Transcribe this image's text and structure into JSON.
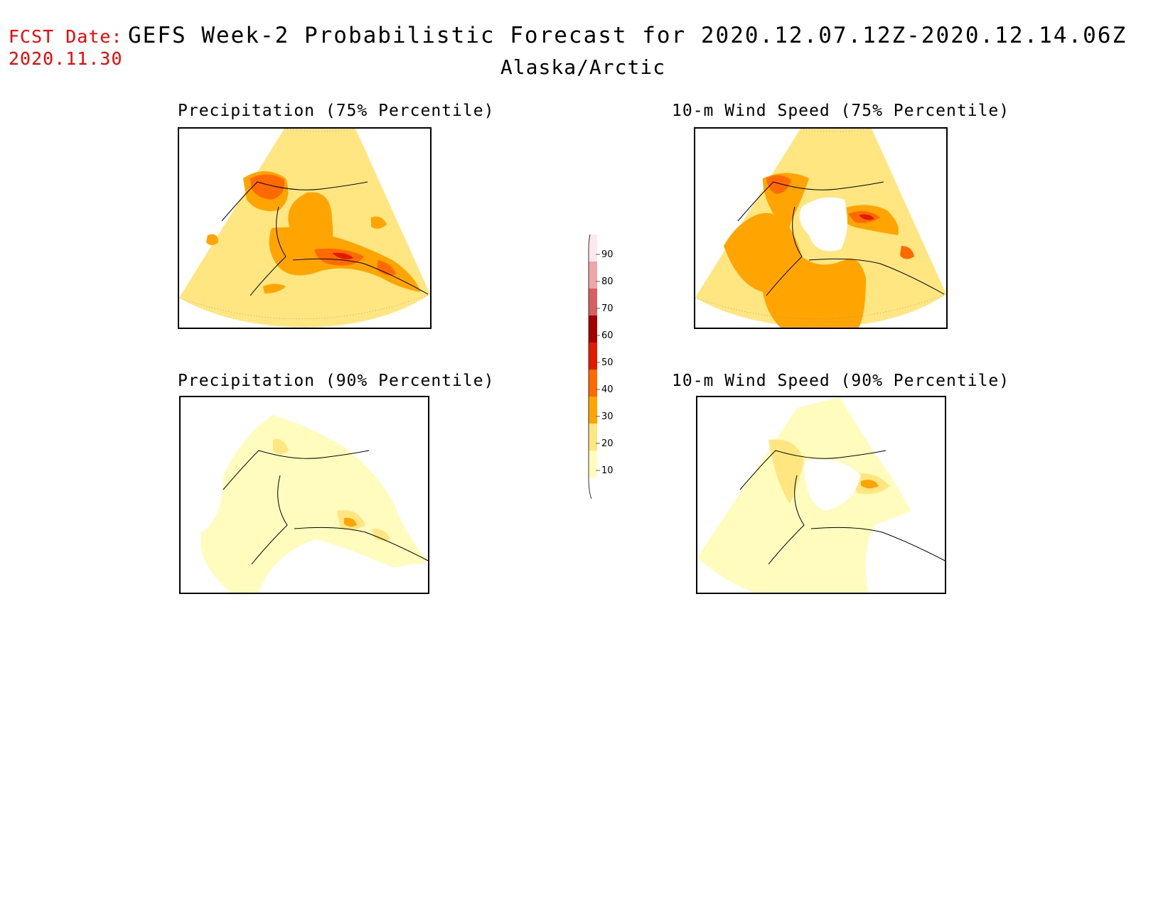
{
  "header": {
    "fcst_label": "FCST Date:",
    "fcst_date": "2020.11.30",
    "title": "GEFS Week-2 Probabilistic Forecast for 2020.12.07.12Z-2020.12.14.06Z",
    "region": "Alaska/Arctic"
  },
  "panels": [
    {
      "id": "p75",
      "title": "Precipitation (75% Percentile)"
    },
    {
      "id": "w75",
      "title": "10-m Wind Speed (75% Percentile)"
    },
    {
      "id": "p90",
      "title": "Precipitation (90% Percentile)"
    },
    {
      "id": "w90",
      "title": "10-m Wind Speed (90% Percentile)"
    }
  ],
  "colorbar": {
    "levels": [
      "10",
      "20",
      "30",
      "40",
      "50",
      "60",
      "70",
      "80",
      "90"
    ],
    "colors": [
      "#fffcbd",
      "#ffe680",
      "#ffa400",
      "#ff6a00",
      "#e31a00",
      "#a50000",
      "#d66060",
      "#f0a6a8",
      "#ffe8ec"
    ]
  }
}
